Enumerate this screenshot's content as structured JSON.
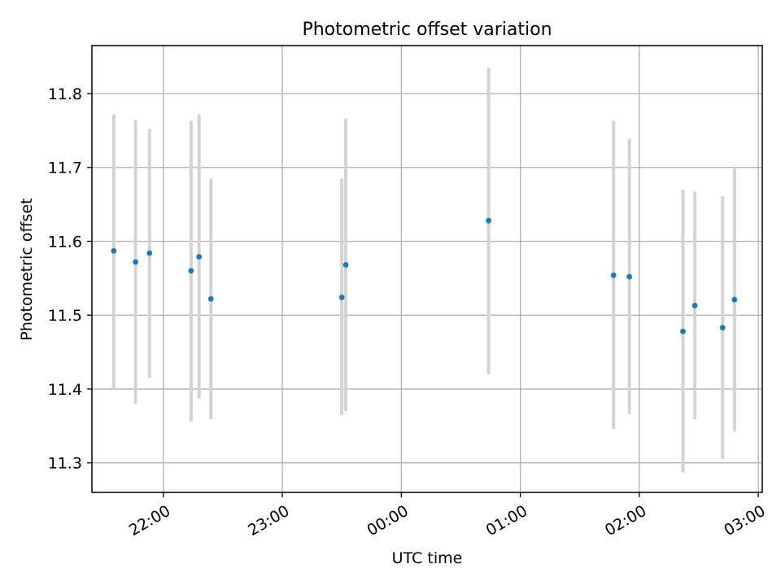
{
  "chart_data": {
    "type": "scatter",
    "title": "Photometric offset variation",
    "xlabel": "UTC time",
    "ylabel": "Photometric offset",
    "x_axis_kind": "time",
    "x_ticks": [
      "22:00",
      "23:00",
      "00:00",
      "01:00",
      "02:00",
      "03:00"
    ],
    "y_ticks": [
      "11.3",
      "11.4",
      "11.5",
      "11.6",
      "11.7",
      "11.8"
    ],
    "xlim": [
      "21:24",
      "03:02"
    ],
    "ylim": [
      11.26,
      11.865
    ],
    "grid": true,
    "marker_color": "#1f77b4",
    "errorbar_color": "#d3d3d3",
    "points": [
      {
        "x": "21:35",
        "y": 11.587,
        "yerr_low": 11.4,
        "yerr_high": 11.772
      },
      {
        "x": "21:46",
        "y": 11.572,
        "yerr_low": 11.38,
        "yerr_high": 11.764
      },
      {
        "x": "21:53",
        "y": 11.584,
        "yerr_low": 11.415,
        "yerr_high": 11.752
      },
      {
        "x": "22:14",
        "y": 11.56,
        "yerr_low": 11.356,
        "yerr_high": 11.763
      },
      {
        "x": "22:18",
        "y": 11.579,
        "yerr_low": 11.387,
        "yerr_high": 11.772
      },
      {
        "x": "22:24",
        "y": 11.522,
        "yerr_low": 11.359,
        "yerr_high": 11.685
      },
      {
        "x": "23:30",
        "y": 11.524,
        "yerr_low": 11.365,
        "yerr_high": 11.685
      },
      {
        "x": "23:32",
        "y": 11.568,
        "yerr_low": 11.37,
        "yerr_high": 11.766
      },
      {
        "x": "00:44",
        "y": 11.628,
        "yerr_low": 11.42,
        "yerr_high": 11.835
      },
      {
        "x": "01:47",
        "y": 11.554,
        "yerr_low": 11.346,
        "yerr_high": 11.763
      },
      {
        "x": "01:55",
        "y": 11.552,
        "yerr_low": 11.366,
        "yerr_high": 11.739
      },
      {
        "x": "02:22",
        "y": 11.478,
        "yerr_low": 11.287,
        "yerr_high": 11.67
      },
      {
        "x": "02:28",
        "y": 11.513,
        "yerr_low": 11.359,
        "yerr_high": 11.667
      },
      {
        "x": "02:42",
        "y": 11.483,
        "yerr_low": 11.305,
        "yerr_high": 11.661
      },
      {
        "x": "02:48",
        "y": 11.521,
        "yerr_low": 11.342,
        "yerr_high": 11.701
      }
    ]
  }
}
